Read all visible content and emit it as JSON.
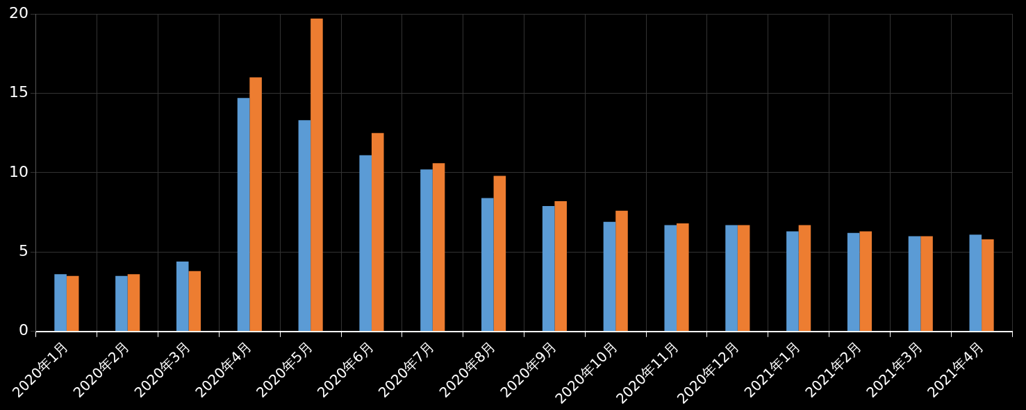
{
  "chart_data": {
    "type": "bar",
    "categories": [
      "2020年1月",
      "2020年2月",
      "2020年3月",
      "2020年4月",
      "2020年5月",
      "2020年6月",
      "2020年7月",
      "2020年8月",
      "2020年9月",
      "2020年10月",
      "2020年11月",
      "2020年12月",
      "2021年1月",
      "2021年2月",
      "2021年3月",
      "2021年4月"
    ],
    "series": [
      {
        "color": "#5b9bd5",
        "values": [
          3.6,
          3.5,
          4.4,
          14.7,
          13.3,
          11.1,
          10.2,
          8.4,
          7.9,
          6.9,
          6.7,
          6.7,
          6.3,
          6.2,
          6.0,
          6.1
        ]
      },
      {
        "color": "#ed7d31",
        "values": [
          3.5,
          3.6,
          3.8,
          16.0,
          19.7,
          12.5,
          10.6,
          9.8,
          8.2,
          7.6,
          6.8,
          6.7,
          6.7,
          6.3,
          6.0,
          5.8
        ]
      }
    ],
    "ylim": [
      0,
      20
    ],
    "yticks": [
      0,
      5,
      10,
      15,
      20
    ],
    "grid": true
  }
}
